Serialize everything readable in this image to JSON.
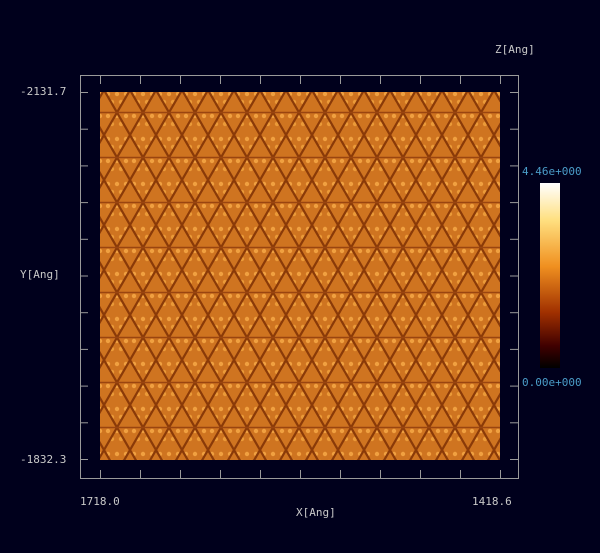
{
  "plot": {
    "x_label": "X[Ang]",
    "y_label": "Y[Ang]",
    "x_ticks": [
      "1718.0",
      "1418.6"
    ],
    "y_ticks": [
      "-2131.7",
      "-1832.3"
    ],
    "colorbar": {
      "label": "Z[Ang]",
      "max": "4.46e+000",
      "min": "0.00e+000"
    }
  }
}
